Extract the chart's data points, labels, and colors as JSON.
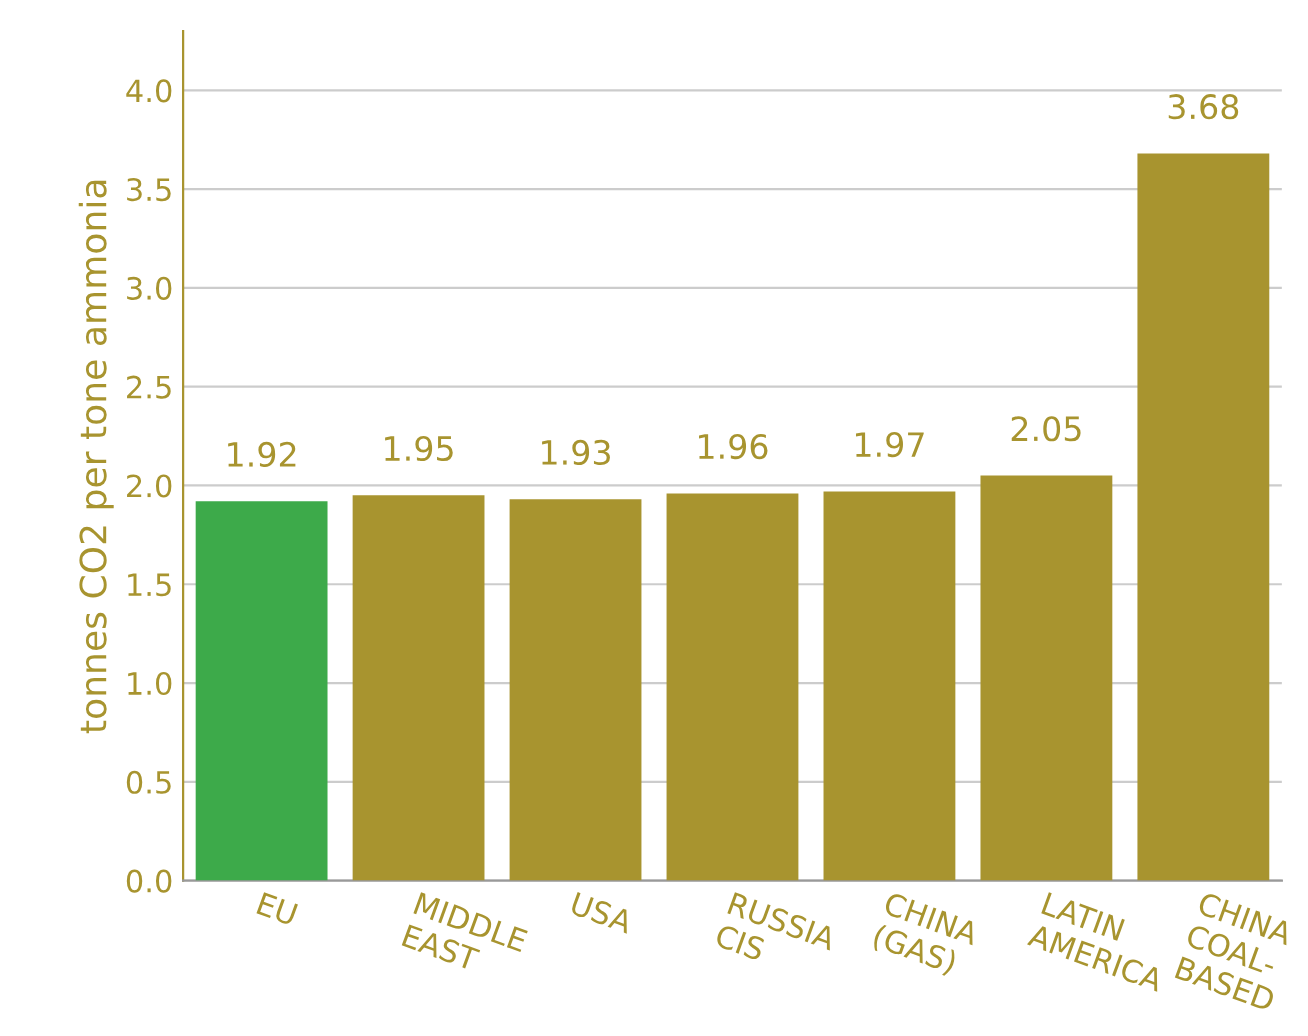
{
  "chart_data": {
    "type": "bar",
    "ylabel": "tonnes CO2 per tone ammonia",
    "categories": [
      "EU",
      "MIDDLE\nEAST",
      "USA",
      "RUSSIA\nCIS",
      "CHINA\n(GAS)",
      "LATIN\nAMERICA",
      "CHINA\nCOAL-\nBASED"
    ],
    "values": [
      1.92,
      1.95,
      1.93,
      1.96,
      1.97,
      2.05,
      3.68
    ],
    "colors": [
      "#3daa4a",
      "#a8942f",
      "#a8942f",
      "#a8942f",
      "#a8942f",
      "#a8942f",
      "#a8942f"
    ],
    "ylim": [
      0,
      4.3
    ],
    "yticks": [
      {
        "value": 0,
        "label": "0.0"
      },
      0.5,
      {
        "value": 1,
        "label": "1.0"
      },
      1.5,
      {
        "value": 2,
        "label": "2.0"
      },
      2.5,
      {
        "value": 3,
        "label": "3.0"
      },
      3.5,
      {
        "value": 4,
        "label": "4.0"
      }
    ],
    "grid": "y",
    "data_labels": true
  }
}
